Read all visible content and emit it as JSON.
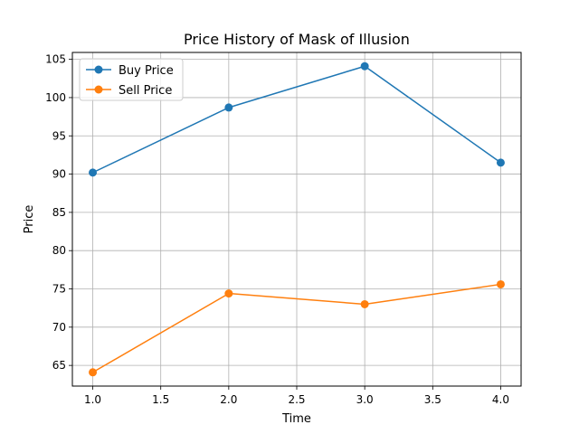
{
  "chart_data": {
    "type": "line",
    "title": "Price History of Mask of Illusion",
    "xlabel": "Time",
    "ylabel": "Price",
    "xlim": [
      0.85,
      4.15
    ],
    "ylim": [
      62.3,
      105.9
    ],
    "x_ticks": [
      "1.0",
      "1.5",
      "2.0",
      "2.5",
      "3.0",
      "3.5",
      "4.0"
    ],
    "y_ticks": [
      "65",
      "70",
      "75",
      "80",
      "85",
      "90",
      "95",
      "100",
      "105"
    ],
    "grid": true,
    "legend_position": "upper-left",
    "x": [
      1,
      2,
      3,
      4
    ],
    "series": [
      {
        "name": "Buy Price",
        "color": "#1f77b4",
        "values": [
          90.2,
          98.7,
          104.1,
          91.5
        ]
      },
      {
        "name": "Sell Price",
        "color": "#ff7f0e",
        "values": [
          64.1,
          74.4,
          73.0,
          75.6
        ]
      }
    ]
  }
}
